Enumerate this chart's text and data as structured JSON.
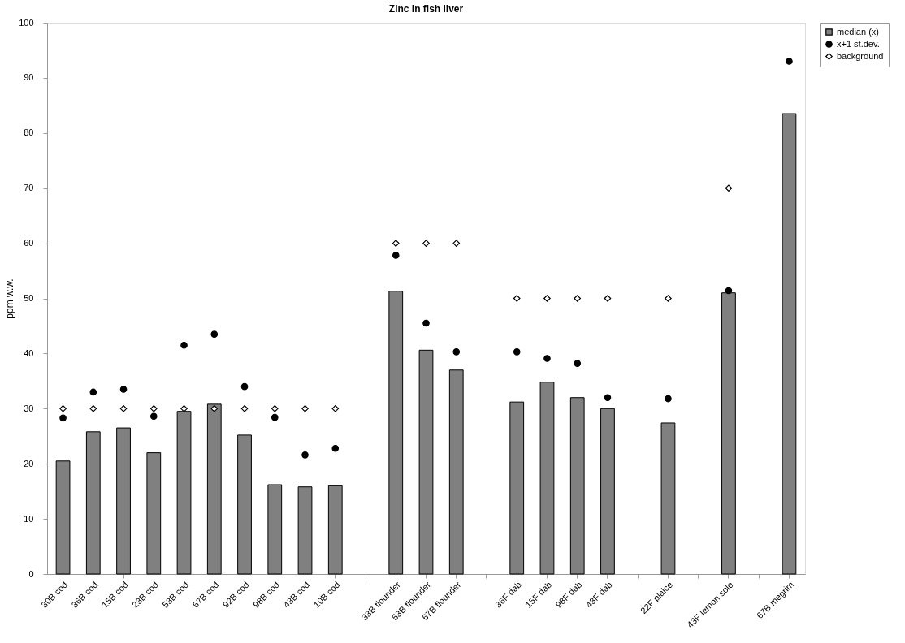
{
  "chart_data": {
    "type": "bar",
    "title": "Zinc in fish liver",
    "ylabel": "ppm w.w.",
    "categories": [
      "30B cod",
      "36B cod",
      "15B cod",
      "23B cod",
      "53B cod",
      "67B cod",
      "92B cod",
      "98B cod",
      "43B cod",
      "10B cod",
      null,
      "33B flounder",
      "53B flounder",
      "67B flounder",
      null,
      "36F dab",
      "15F dab",
      "98F dab",
      "43F dab",
      null,
      "22F plaice",
      null,
      "43F lemon sole",
      null,
      "67B megrim"
    ],
    "series": [
      {
        "name": "median (x)",
        "color": "#808080",
        "values": [
          20.5,
          25.8,
          26.5,
          22,
          29.5,
          30.8,
          25.2,
          16.2,
          15.8,
          16,
          null,
          51.3,
          40.6,
          37,
          null,
          31.2,
          34.8,
          32,
          30,
          null,
          27.4,
          null,
          51,
          null,
          83.5
        ]
      },
      {
        "name": "x+1 st.dev.",
        "type": "scatter",
        "marker": "circle",
        "color": "#000000",
        "values": [
          28.3,
          33,
          33.5,
          28.6,
          41.5,
          43.5,
          34,
          28.4,
          21.6,
          22.8,
          null,
          57.8,
          45.5,
          40.3,
          null,
          40.3,
          39.1,
          38.2,
          32,
          null,
          31.8,
          null,
          51.4,
          null,
          93
        ]
      },
      {
        "name": "background",
        "type": "scatter",
        "marker": "diamond",
        "color": "#ffffff",
        "values": [
          30,
          30,
          30,
          30,
          30,
          30,
          30,
          30,
          30,
          30,
          null,
          60,
          60,
          60,
          null,
          50,
          50,
          50,
          50,
          null,
          50,
          null,
          70,
          null,
          null
        ]
      }
    ],
    "ylim": [
      0,
      100
    ],
    "yticks": [
      0,
      10,
      20,
      30,
      40,
      50,
      60,
      70,
      80,
      90,
      100
    ],
    "legend": "right",
    "grid": false
  }
}
